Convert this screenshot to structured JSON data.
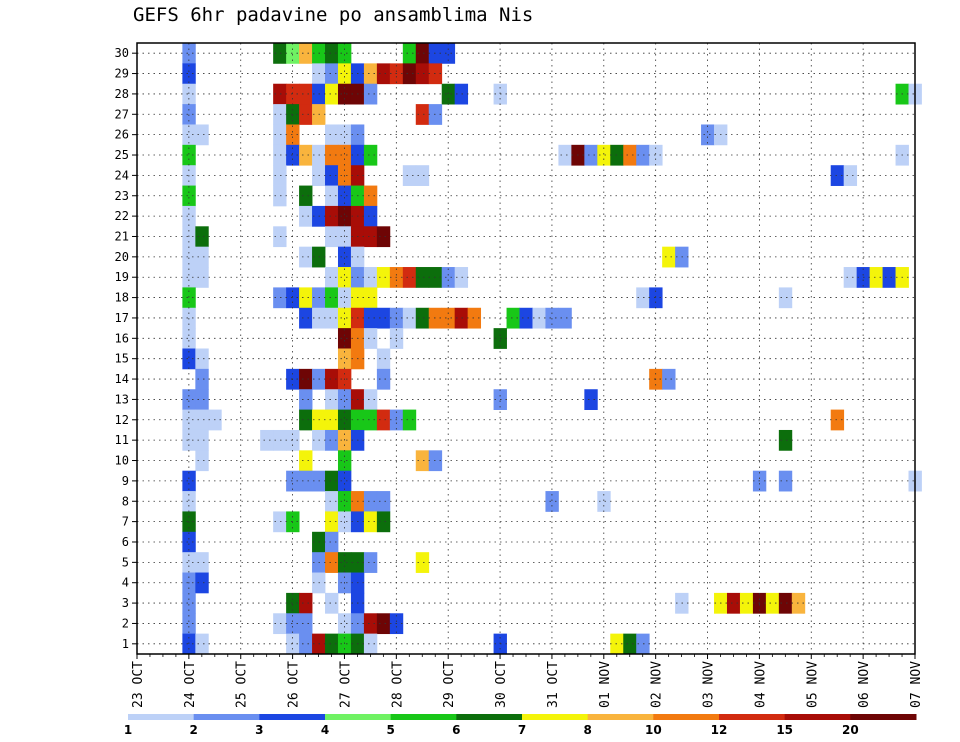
{
  "chart_data": {
    "type": "heatmap",
    "title": "GEFS 6hr padavine po ansamblima Nis",
    "xlabel": "",
    "ylabel": "",
    "x_tick_labels": [
      "23 OCT",
      "24 OCT",
      "25 OCT",
      "26 OCT",
      "27 OCT",
      "28 OCT",
      "29 OCT",
      "30 OCT",
      "31 OCT",
      "01 NOV",
      "02 NOV",
      "03 NOV",
      "04 NOV",
      "05 NOV",
      "06 NOV",
      "07 NOV"
    ],
    "y_tick_labels": [
      "1",
      "2",
      "3",
      "4",
      "5",
      "6",
      "7",
      "8",
      "9",
      "10",
      "11",
      "12",
      "13",
      "14",
      "15",
      "16",
      "17",
      "18",
      "19",
      "20",
      "21",
      "22",
      "23",
      "24",
      "25",
      "26",
      "27",
      "28",
      "29",
      "30"
    ],
    "xlim_steps": [
      0,
      60
    ],
    "ylim": [
      0.5,
      30.5
    ],
    "grid": true,
    "color_levels": [
      1,
      2,
      3,
      4,
      5,
      6,
      7,
      8,
      10,
      12,
      15,
      20
    ],
    "colorbar_labels": [
      "1",
      "2",
      "3",
      "4",
      "5",
      "6",
      "7",
      "8",
      "10",
      "12",
      "15",
      "20"
    ],
    "colors": [
      "#bdd1f7",
      "#6a8ff0",
      "#1c46e2",
      "#6ff263",
      "#18c718",
      "#0c6e0c",
      "#f4f40a",
      "#f9b43d",
      "#f27a10",
      "#d22b10",
      "#a80d07",
      "#6e0505"
    ],
    "cells": [
      [
        30,
        "4:2,11:6,12:4,13:8,14:5,15:6,16:5,21:5,22:12,23:3,24:3"
      ],
      [
        29,
        "4:3,14:1,15:2,16:7,17:3,18:8,19:11,20:10,21:12,22:11,23:10"
      ],
      [
        28,
        "4:1,11:11,12:10,13:10,14:3,15:7,16:12,17:12,18:2,24:6,25:3,28:1,59:5,60:1"
      ],
      [
        27,
        "4:2,11:1,12:6,13:10,14:8,22:10,23:2"
      ],
      [
        26,
        "4:1,5:1,11:1,12:9,15:1,16:1,17:2,44:2,45:1"
      ],
      [
        25,
        "4:5,11:1,12:3,13:8,14:1,15:9,16:9,17:3,18:5,33:1,34:12,35:2,36:7,37:6,38:9,39:2,40:1,59:1"
      ],
      [
        24,
        "4:1,11:1,14:1,15:3,16:9,17:11,21:1,22:1,54:3,55:1"
      ],
      [
        23,
        "4:5,11:1,13:6,15:1,16:3,17:5,18:9"
      ],
      [
        22,
        "4:1,13:1,14:3,15:11,16:12,17:11,18:3"
      ],
      [
        21,
        "4:1,5:6,11:1,15:1,16:1,17:11,18:11,19:12"
      ],
      [
        20,
        "4:1,5:1,13:1,14:6,16:3,17:1,41:7,42:2"
      ],
      [
        19,
        "4:1,5:1,15:1,16:7,17:2,18:1,19:7,20:9,21:10,22:6,23:6,24:2,25:1,55:1,56:3,57:7,58:3,59:7"
      ],
      [
        18,
        "4:5,11:2,12:3,13:7,14:2,15:5,16:1,17:7,18:7,39:1,40:3,50:1"
      ],
      [
        17,
        "4:1,13:3,14:1,15:1,16:7,17:10,18:3,19:3,20:2,21:1,22:6,23:9,24:9,25:11,26:9,29:5,30:3,31:1,32:2,33:2"
      ],
      [
        16,
        "4:1,16:12,17:9,18:1,20:1,28:6"
      ],
      [
        15,
        "4:3,5:1,16:8,17:9,19:1"
      ],
      [
        14,
        "5:2,12:3,13:12,14:2,15:11,16:10,19:2,40:9,41:2"
      ],
      [
        13,
        "4:2,5:2,13:2,15:1,16:2,17:11,18:1,28:2,35:3"
      ],
      [
        12,
        "4:1,5:1,6:1,13:6,14:7,15:7,16:6,17:5,18:5,19:10,20:2,21:5,54:9"
      ],
      [
        11,
        "4:1,5:1,10:1,11:1,12:1,14:1,15:2,16:8,17:3,50:6"
      ],
      [
        10,
        "5:1,13:7,16:5,22:8,23:2"
      ],
      [
        9,
        "4:3,12:2,13:2,14:2,15:6,16:3,48:2,50:2,60:1"
      ],
      [
        8,
        "4:1,15:1,16:5,17:9,18:2,19:2,32:2,36:1"
      ],
      [
        7,
        "4:6,11:1,12:5,15:7,16:1,17:3,18:7,19:6"
      ],
      [
        6,
        "4:3,14:6,15:2"
      ],
      [
        5,
        "4:1,5:1,14:2,15:9,16:6,17:6,18:2,22:7"
      ],
      [
        4,
        "4:2,5:3,14:1,16:2,17:3"
      ],
      [
        3,
        "4:2,12:6,13:11,15:1,17:3,42:1,45:7,46:11,47:7,48:12,49:7,50:12,51:8"
      ],
      [
        2,
        "4:2,11:1,12:2,13:2,16:1,17:2,18:11,19:12,20:3"
      ],
      [
        1,
        "4:3,5:1,12:1,13:2,14:11,15:6,16:5,17:6,18:1,28:3,37:7,38:6,39:2"
      ]
    ]
  }
}
